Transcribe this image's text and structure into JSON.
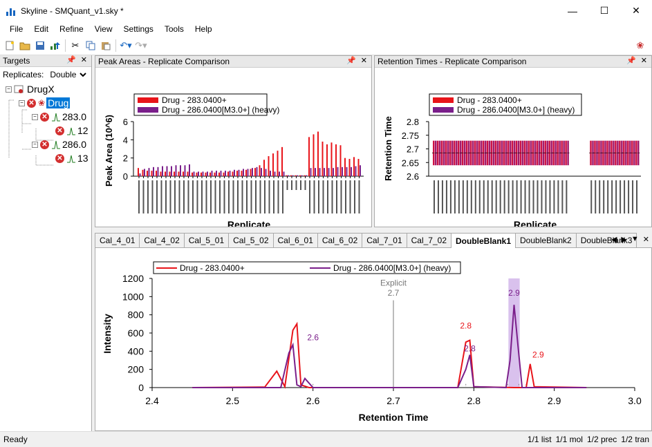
{
  "window": {
    "title": "Skyline - SMQuant_v1.sky *",
    "app_icon": "skyline-icon"
  },
  "menu": [
    "File",
    "Edit",
    "Refine",
    "View",
    "Settings",
    "Tools",
    "Help"
  ],
  "targets_panel": {
    "title": "Targets",
    "replicates_label": "Replicates:",
    "replicates_value": "Double",
    "tree": [
      {
        "label": "DrugX",
        "level": 0
      },
      {
        "label": "Drug",
        "level": 1,
        "selected": true
      },
      {
        "label": "283.0",
        "level": 2
      },
      {
        "label": "12",
        "level": 3
      },
      {
        "label": "286.0",
        "level": 2
      },
      {
        "label": "13",
        "level": 3
      }
    ]
  },
  "peak_areas": {
    "title": "Peak Areas - Replicate Comparison",
    "legend": [
      "Drug - 283.0400+",
      "Drug - 286.0400[M3.0+] (heavy)"
    ],
    "colors": {
      "light": "#e8141a",
      "heavy": "#7a1e8a"
    }
  },
  "retention_times": {
    "title": "Retention Times - Replicate Comparison",
    "legend": [
      "Drug - 283.0400+",
      "Drug - 286.0400[M3.0+] (heavy)"
    ]
  },
  "tabs": [
    "Cal_4_01",
    "Cal_4_02",
    "Cal_5_01",
    "Cal_5_02",
    "Cal_6_01",
    "Cal_6_02",
    "Cal_7_01",
    "Cal_7_02",
    "DoubleBlank1",
    "DoubleBlank2",
    "DoubleBlank3"
  ],
  "active_tab": "DoubleBlank1",
  "chromatogram": {
    "legend": [
      "Drug - 283.0400+",
      "Drug - 286.0400[M3.0+] (heavy)"
    ],
    "explicit_label": "Explicit",
    "explicit_rt": "2.7",
    "peak_labels": [
      {
        "text": "2.6",
        "series": "heavy"
      },
      {
        "text": "2.8",
        "series": "light"
      },
      {
        "text": "2.8",
        "series": "heavy"
      },
      {
        "text": "2.9",
        "series": "heavy"
      },
      {
        "text": "2.9",
        "series": "light"
      }
    ]
  },
  "chart_data": [
    {
      "type": "bar",
      "title": "Peak Areas - Replicate Comparison",
      "xlabel": "Replicate",
      "ylabel": "Peak Area (10^6)",
      "ylim": [
        0,
        6
      ],
      "yticks": [
        0,
        2,
        4,
        6
      ],
      "series": [
        {
          "name": "Drug - 283.0400+",
          "values": [
            0.9,
            0.7,
            0.6,
            0.6,
            0.6,
            0.5,
            0.5,
            0.5,
            0.5,
            0.5,
            0.5,
            0.5,
            0.4,
            0.4,
            0.4,
            0.4,
            0.4,
            0.4,
            0.4,
            0.4,
            0.5,
            0.5,
            0.6,
            0.6,
            0.7,
            0.8,
            0.9,
            1.2,
            1.8,
            2.2,
            2.5,
            2.8,
            3.2,
            0.1,
            0.1,
            0.1,
            0.1,
            0.1,
            4.3,
            4.6,
            4.9,
            3.8,
            3.5,
            3.7,
            3.5,
            3.4,
            2.0,
            1.9,
            2.1,
            1.9
          ]
        },
        {
          "name": "Drug - 286.0400[M3.0+] (heavy)",
          "values": [
            0.3,
            0.8,
            0.9,
            1.0,
            1.0,
            1.1,
            1.1,
            1.1,
            1.2,
            1.2,
            1.2,
            1.3,
            0.5,
            0.5,
            0.5,
            0.5,
            0.6,
            0.6,
            0.6,
            0.6,
            0.6,
            0.7,
            0.7,
            0.8,
            0.8,
            0.9,
            1.0,
            0.9,
            0.8,
            0.6,
            0.5,
            0.5,
            0.5,
            0.1,
            0.1,
            0.1,
            0.1,
            0.1,
            0.9,
            0.9,
            0.9,
            0.9,
            0.9,
            0.9,
            1.0,
            1.0,
            1.0,
            1.0,
            1.1,
            1.2
          ]
        }
      ]
    },
    {
      "type": "bar",
      "title": "Retention Times - Replicate Comparison",
      "xlabel": "Replicate",
      "ylabel": "Retention Time",
      "ylim": [
        2.6,
        2.8
      ],
      "yticks": [
        2.6,
        2.65,
        2.7,
        2.75,
        2.8
      ],
      "series": [
        {
          "name": "Drug - 283.0400+",
          "range": [
            2.64,
            2.73
          ]
        },
        {
          "name": "Drug - 286.0400[M3.0+] (heavy)",
          "range": [
            2.64,
            2.73
          ]
        }
      ]
    },
    {
      "type": "line",
      "xlabel": "Retention Time",
      "ylabel": "Intensity",
      "xlim": [
        2.4,
        3.0
      ],
      "ylim": [
        0,
        1200
      ],
      "xticks": [
        2.4,
        2.5,
        2.6,
        2.7,
        2.8,
        2.9,
        3.0
      ],
      "yticks": [
        0,
        200,
        400,
        600,
        800,
        1000,
        1200
      ],
      "series": [
        {
          "name": "Drug - 283.0400+",
          "x": [
            2.45,
            2.54,
            2.555,
            2.565,
            2.575,
            2.58,
            2.585,
            2.595,
            2.78,
            2.79,
            2.795,
            2.8,
            2.85,
            2.855,
            2.86,
            2.865,
            2.87,
            2.875,
            2.94
          ],
          "y": [
            0,
            5,
            180,
            10,
            630,
            700,
            30,
            0,
            0,
            500,
            520,
            10,
            0,
            0,
            0,
            0,
            260,
            10,
            0
          ]
        },
        {
          "name": "Drug - 286.0400[M3.0+] (heavy)",
          "x": [
            2.45,
            2.56,
            2.57,
            2.575,
            2.58,
            2.585,
            2.59,
            2.6,
            2.78,
            2.79,
            2.795,
            2.8,
            2.84,
            2.845,
            2.85,
            2.855,
            2.86,
            2.94
          ],
          "y": [
            0,
            0,
            380,
            470,
            30,
            10,
            100,
            0,
            0,
            200,
            360,
            10,
            0,
            300,
            910,
            450,
            0,
            0
          ]
        }
      ]
    }
  ],
  "status": {
    "left": "Ready",
    "right": [
      "1/1 list",
      "1/1 mol",
      "1/2 prec",
      "1/2 tran"
    ]
  }
}
